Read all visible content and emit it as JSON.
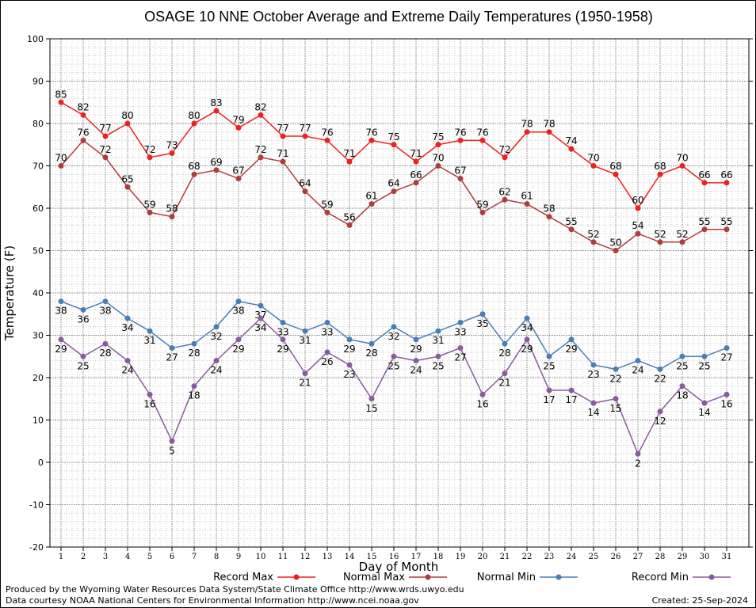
{
  "chart_data": {
    "type": "line",
    "title": "OSAGE 10 NNE October Average and Extreme Daily Temperatures (1950-1958)",
    "xlabel": "Day of Month",
    "ylabel": "Temperature (F)",
    "ylim": [
      -20,
      100
    ],
    "yticks": [
      -20,
      -10,
      0,
      10,
      20,
      30,
      40,
      50,
      60,
      70,
      80,
      90,
      100
    ],
    "x": [
      1,
      2,
      3,
      4,
      5,
      6,
      7,
      8,
      9,
      10,
      11,
      12,
      13,
      14,
      15,
      16,
      17,
      18,
      19,
      20,
      21,
      22,
      23,
      24,
      25,
      26,
      27,
      28,
      29,
      30,
      31
    ],
    "grid": true,
    "legend_position": "bottom",
    "series": [
      {
        "name": "Record Max",
        "color": "#ee2020",
        "label_pos": "above",
        "values": [
          85,
          82,
          77,
          80,
          72,
          73,
          80,
          83,
          79,
          82,
          77,
          77,
          76,
          71,
          76,
          75,
          71,
          75,
          76,
          76,
          72,
          78,
          78,
          74,
          70,
          68,
          60,
          68,
          70,
          66,
          66
        ]
      },
      {
        "name": "Normal Max",
        "color": "#b03c3c",
        "label_pos": "above",
        "values": [
          70,
          76,
          72,
          65,
          59,
          58,
          68,
          69,
          67,
          72,
          71,
          64,
          59,
          56,
          61,
          64,
          66,
          70,
          67,
          59,
          62,
          61,
          58,
          55,
          52,
          50,
          54,
          52,
          52,
          55,
          55
        ]
      },
      {
        "name": "Normal Min",
        "color": "#4a7fb5",
        "label_pos": "below",
        "values": [
          38,
          36,
          38,
          34,
          31,
          27,
          28,
          32,
          38,
          37,
          33,
          31,
          33,
          29,
          28,
          32,
          29,
          31,
          33,
          35,
          28,
          34,
          25,
          29,
          23,
          22,
          24,
          22,
          25,
          25,
          27
        ]
      },
      {
        "name": "Record Min",
        "color": "#8a5a9e",
        "label_pos": "below",
        "values": [
          29,
          25,
          28,
          24,
          16,
          5,
          18,
          24,
          29,
          34,
          29,
          21,
          26,
          23,
          15,
          25,
          24,
          25,
          27,
          16,
          21,
          29,
          17,
          17,
          14,
          15,
          2,
          12,
          18,
          14,
          16
        ]
      }
    ]
  },
  "footer": {
    "produced_by": "Produced by the Wyoming Water Resources Data System/State Climate Office http://www.wrds.uwyo.edu",
    "data_courtesy": "Data courtesy NOAA National Centers for Environmental Information http://www.ncei.noaa.gov",
    "created": "Created:  25-Sep-2024"
  }
}
